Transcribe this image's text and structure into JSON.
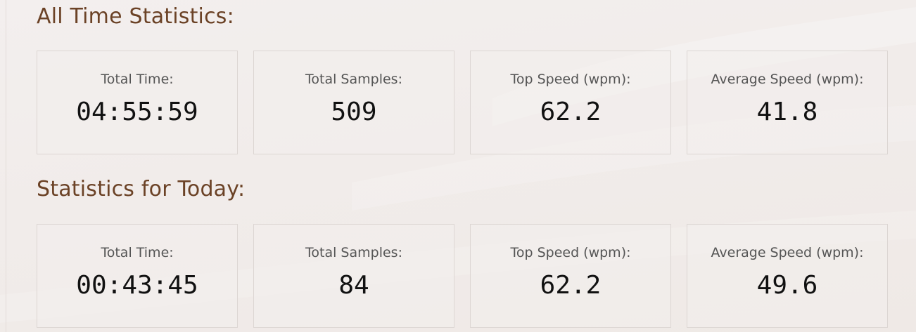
{
  "all_time": {
    "title": "All Time Statistics:",
    "cards": [
      {
        "label": "Total Time:",
        "value": "04:55:59"
      },
      {
        "label": "Total Samples:",
        "value": "509"
      },
      {
        "label": "Top Speed (wpm):",
        "value": "62.2"
      },
      {
        "label": "Average Speed (wpm):",
        "value": "41.8"
      }
    ]
  },
  "today": {
    "title": "Statistics for Today:",
    "cards": [
      {
        "label": "Total Time:",
        "value": "00:43:45"
      },
      {
        "label": "Total Samples:",
        "value": "84"
      },
      {
        "label": "Top Speed (wpm):",
        "value": "62.2"
      },
      {
        "label": "Average Speed (wpm):",
        "value": "49.6"
      }
    ]
  },
  "colors": {
    "title": "#6b4226",
    "label": "#555555",
    "value": "#111111",
    "card_border": "#dcd6d3"
  }
}
